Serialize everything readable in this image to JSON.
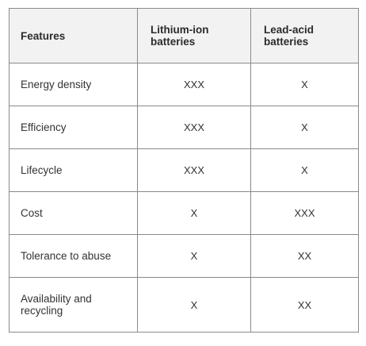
{
  "table": {
    "headers": [
      "Features",
      "Lithium-ion batteries",
      "Lead-acid batteries"
    ],
    "rows": [
      {
        "feature": "Energy density",
        "lithium_ion": "XXX",
        "lead_acid": "X"
      },
      {
        "feature": "Efficiency",
        "lithium_ion": "XXX",
        "lead_acid": "X"
      },
      {
        "feature": "Lifecycle",
        "lithium_ion": "XXX",
        "lead_acid": "X"
      },
      {
        "feature": "Cost",
        "lithium_ion": "X",
        "lead_acid": "XXX"
      },
      {
        "feature": "Tolerance to abuse",
        "lithium_ion": "X",
        "lead_acid": "XX"
      },
      {
        "feature": "Availability and recycling",
        "lithium_ion": "X",
        "lead_acid": "XX"
      }
    ]
  },
  "colors": {
    "header_background": "#f2f2f2",
    "border": "#8a8a8a",
    "text": "#333333"
  }
}
